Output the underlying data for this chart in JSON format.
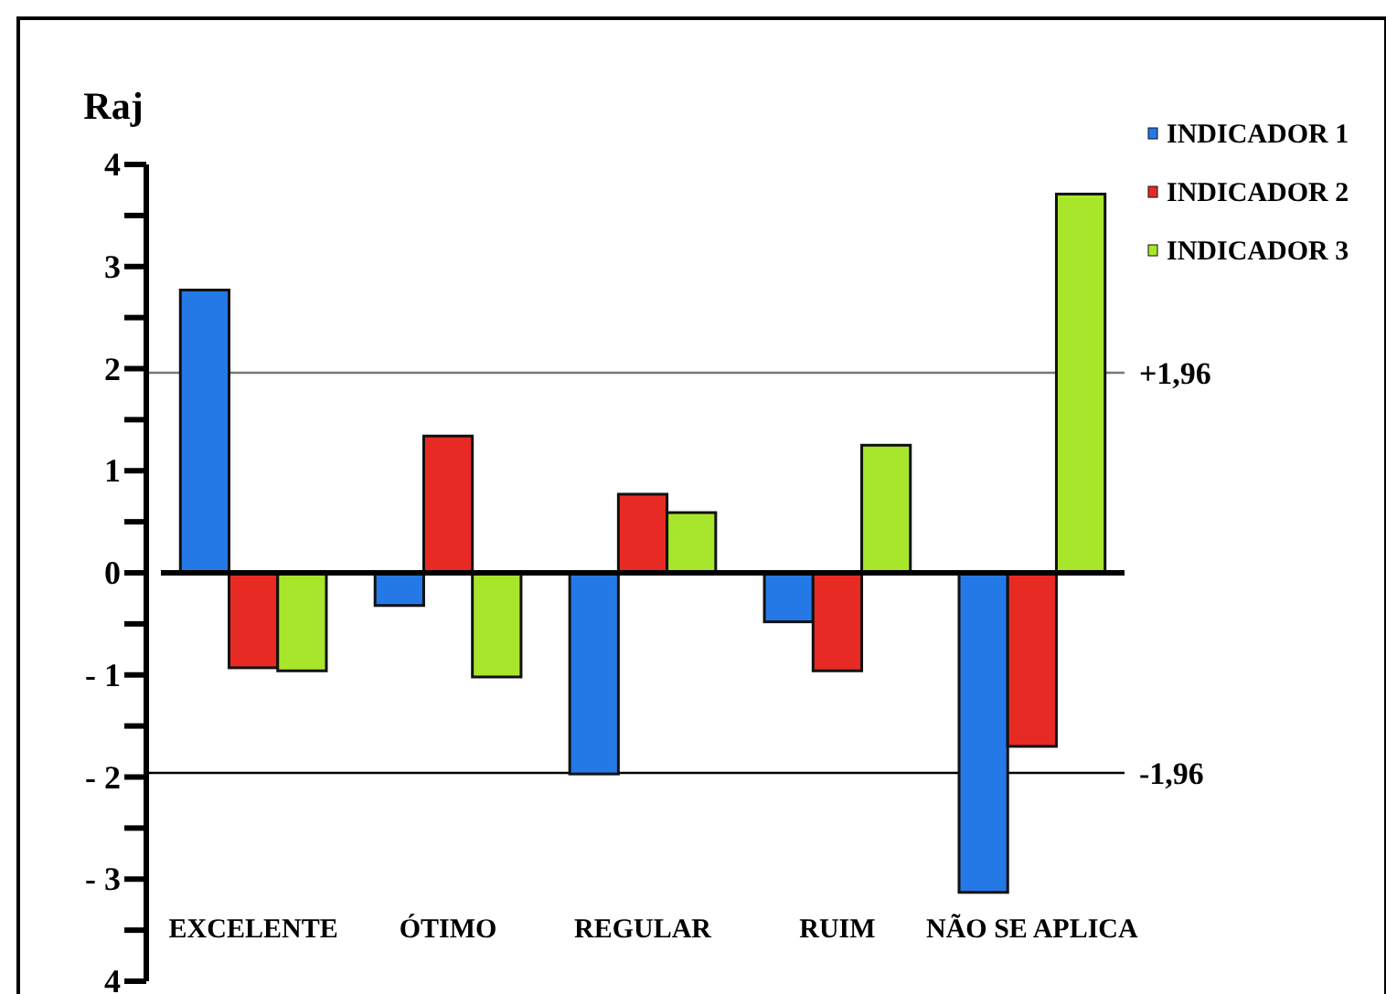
{
  "chart_data": {
    "type": "bar",
    "ylabel": "Raj",
    "categories": [
      "EXCELENTE",
      "ÓTIMO",
      "REGULAR",
      "RUIM",
      "NÃO SE APLICA"
    ],
    "series": [
      {
        "name": "INDICADOR 1",
        "color": "#2479e6",
        "values": [
          2.77,
          -0.32,
          -1.97,
          -0.48,
          -3.13
        ]
      },
      {
        "name": "INDICADOR 2",
        "color": "#e82a24",
        "values": [
          -0.93,
          1.34,
          0.77,
          -0.96,
          -1.7
        ]
      },
      {
        "name": "INDICADOR 3",
        "color": "#a8e62c",
        "values": [
          -0.96,
          -1.02,
          0.59,
          1.25,
          3.71
        ]
      }
    ],
    "ylim": [
      -4,
      4
    ],
    "yticks": [
      {
        "value": -4,
        "label": "4"
      },
      {
        "value": -3.5,
        "label": null
      },
      {
        "value": -3,
        "label": "- 3"
      },
      {
        "value": -2.5,
        "label": null
      },
      {
        "value": -2,
        "label": "- 2"
      },
      {
        "value": -1.5,
        "label": null
      },
      {
        "value": -1,
        "label": "- 1"
      },
      {
        "value": -0.5,
        "label": null
      },
      0,
      {
        "value": 0.5,
        "label": null
      },
      1,
      {
        "value": 1.5,
        "label": null
      },
      2,
      {
        "value": 2.5,
        "label": null
      },
      3,
      {
        "value": 3.5,
        "label": null
      },
      4
    ],
    "ref_lines": [
      {
        "axis": "y",
        "value": 1.96,
        "label": "+1,96",
        "color": "#777777"
      },
      {
        "axis": "y",
        "value": -1.96,
        "label": "-1,96",
        "color": "#000000"
      }
    ],
    "legend": "top right"
  }
}
